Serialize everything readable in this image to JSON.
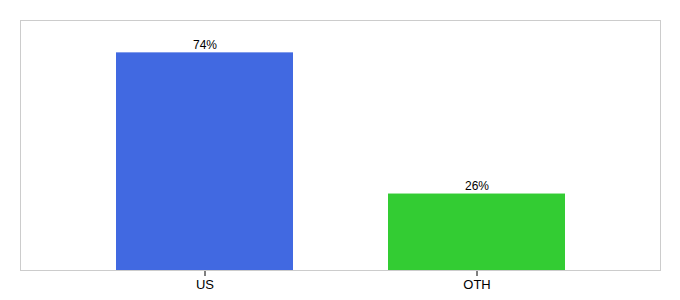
{
  "chart_data": {
    "type": "bar",
    "categories": [
      "US",
      "OTH"
    ],
    "values": [
      74,
      26
    ],
    "value_labels": [
      "74%",
      "26%"
    ],
    "colors": [
      "#4169e1",
      "#33cc33"
    ],
    "ylim": [
      0,
      85
    ],
    "data_labels": true,
    "tick_labels": "x"
  }
}
